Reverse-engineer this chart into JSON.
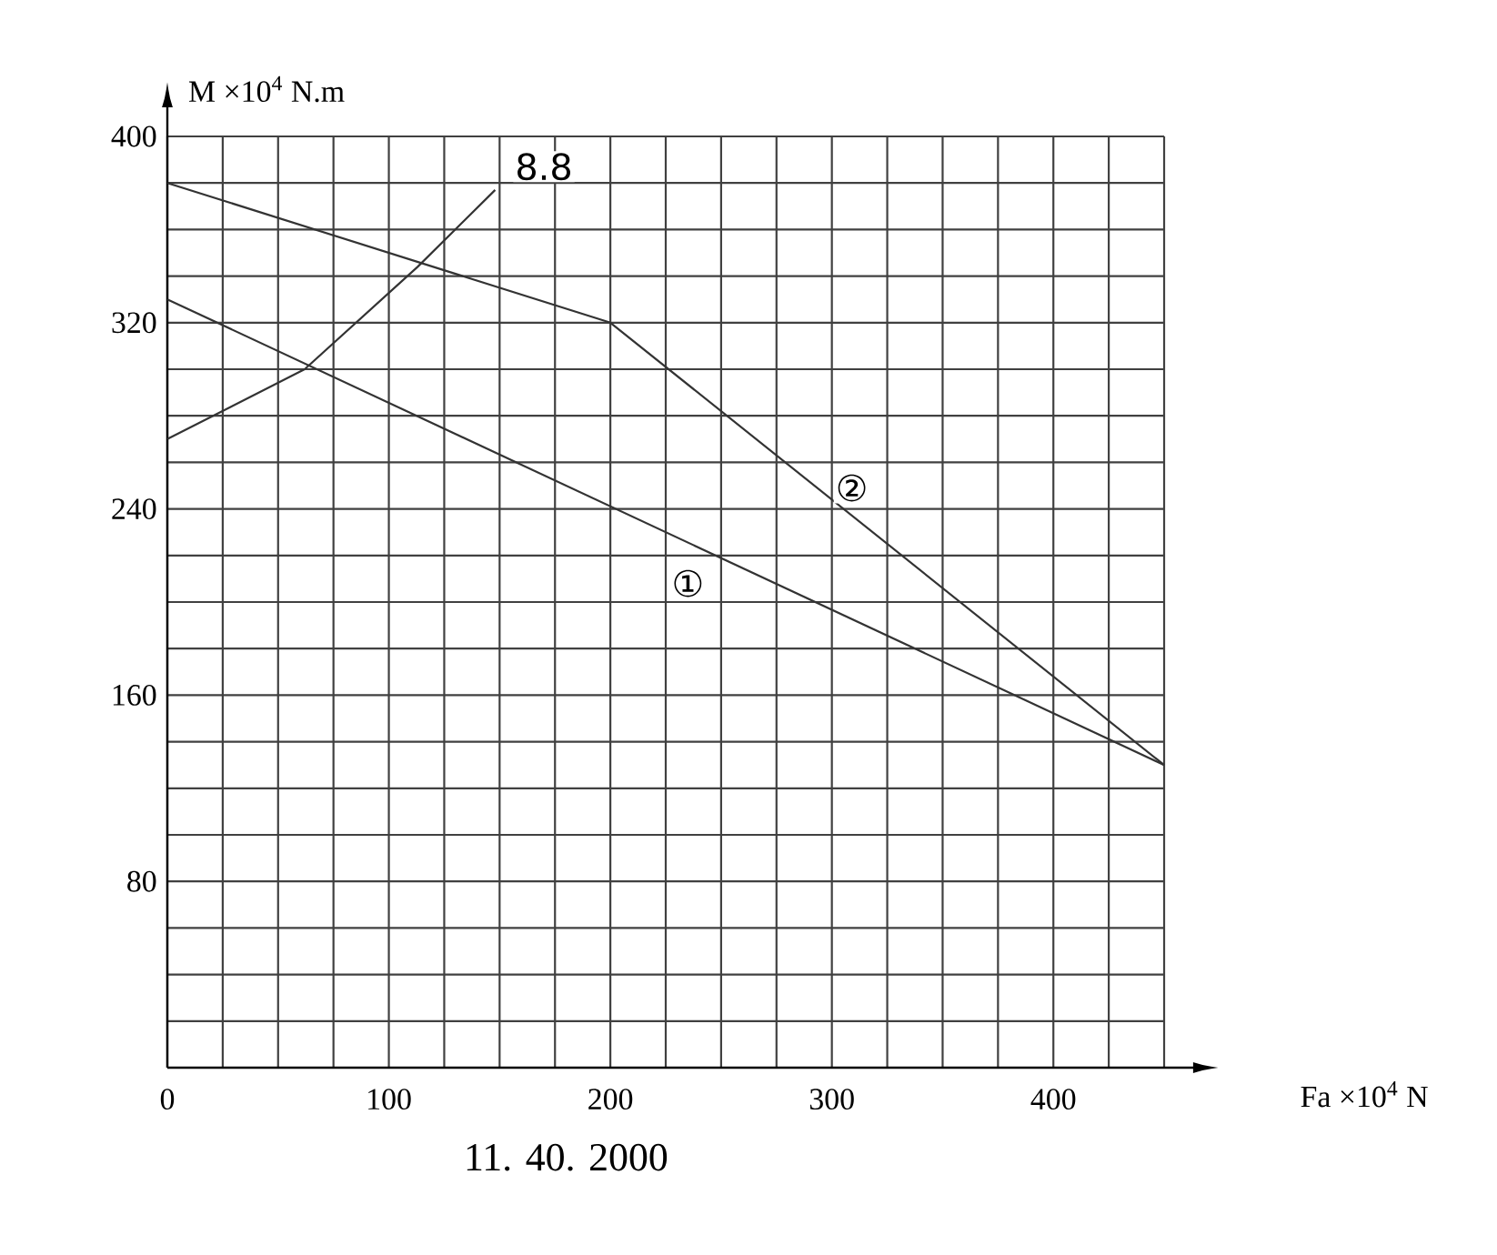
{
  "chart_data": {
    "type": "line",
    "xlabel": "Fa  ×10$^{4}$ N",
    "ylabel": "M  ×10$^{4}$ N.m",
    "xlim": [
      0,
      450
    ],
    "ylim": [
      0,
      400
    ],
    "xticks": [
      0,
      {
        "value": 25,
        "label": null
      },
      {
        "value": 50,
        "label": null
      },
      {
        "value": 75,
        "label": null
      },
      100,
      {
        "value": 125,
        "label": null
      },
      {
        "value": 150,
        "label": null
      },
      {
        "value": 175,
        "label": null
      },
      200,
      {
        "value": 225,
        "label": null
      },
      {
        "value": 250,
        "label": null
      },
      {
        "value": 275,
        "label": null
      },
      300,
      {
        "value": 325,
        "label": null
      },
      {
        "value": 350,
        "label": null
      },
      {
        "value": 375,
        "label": null
      },
      400,
      {
        "value": 425,
        "label": null
      },
      {
        "value": 450,
        "label": null
      }
    ],
    "yticks": [
      {
        "value": 0,
        "label": null
      },
      {
        "value": 20,
        "label": null
      },
      {
        "value": 40,
        "label": null
      },
      {
        "value": 60,
        "label": null
      },
      80,
      {
        "value": 100,
        "label": null
      },
      {
        "value": 120,
        "label": null
      },
      {
        "value": 140,
        "label": null
      },
      160,
      {
        "value": 180,
        "label": null
      },
      {
        "value": 200,
        "label": null
      },
      {
        "value": 220,
        "label": null
      },
      240,
      {
        "value": 260,
        "label": null
      },
      {
        "value": 280,
        "label": null
      },
      {
        "value": 300,
        "label": null
      },
      320,
      {
        "value": 340,
        "label": null
      },
      {
        "value": 360,
        "label": null
      },
      {
        "value": 380,
        "label": null
      },
      400
    ],
    "grid": true,
    "marker": "none",
    "line_style": "solid",
    "series": [
      {
        "color": "#333333",
        "x": [
          0,
          450
        ],
        "values": [
          330,
          130
        ]
      },
      {
        "color": "#333333",
        "x": [
          0,
          200,
          450
        ],
        "values": [
          380,
          320,
          130
        ]
      },
      {
        "color": "#333333",
        "x": [
          0,
          62,
          113,
          148
        ],
        "values": [
          270,
          300,
          344,
          377
        ]
      }
    ],
    "annotations": [
      {
        "text": "①",
        "x": 235,
        "y": 208
      },
      {
        "text": "②",
        "x": 309,
        "y": 249
      },
      {
        "text": "8.8",
        "x": 170,
        "y": 387
      },
      "11. 40. 2000"
    ]
  }
}
